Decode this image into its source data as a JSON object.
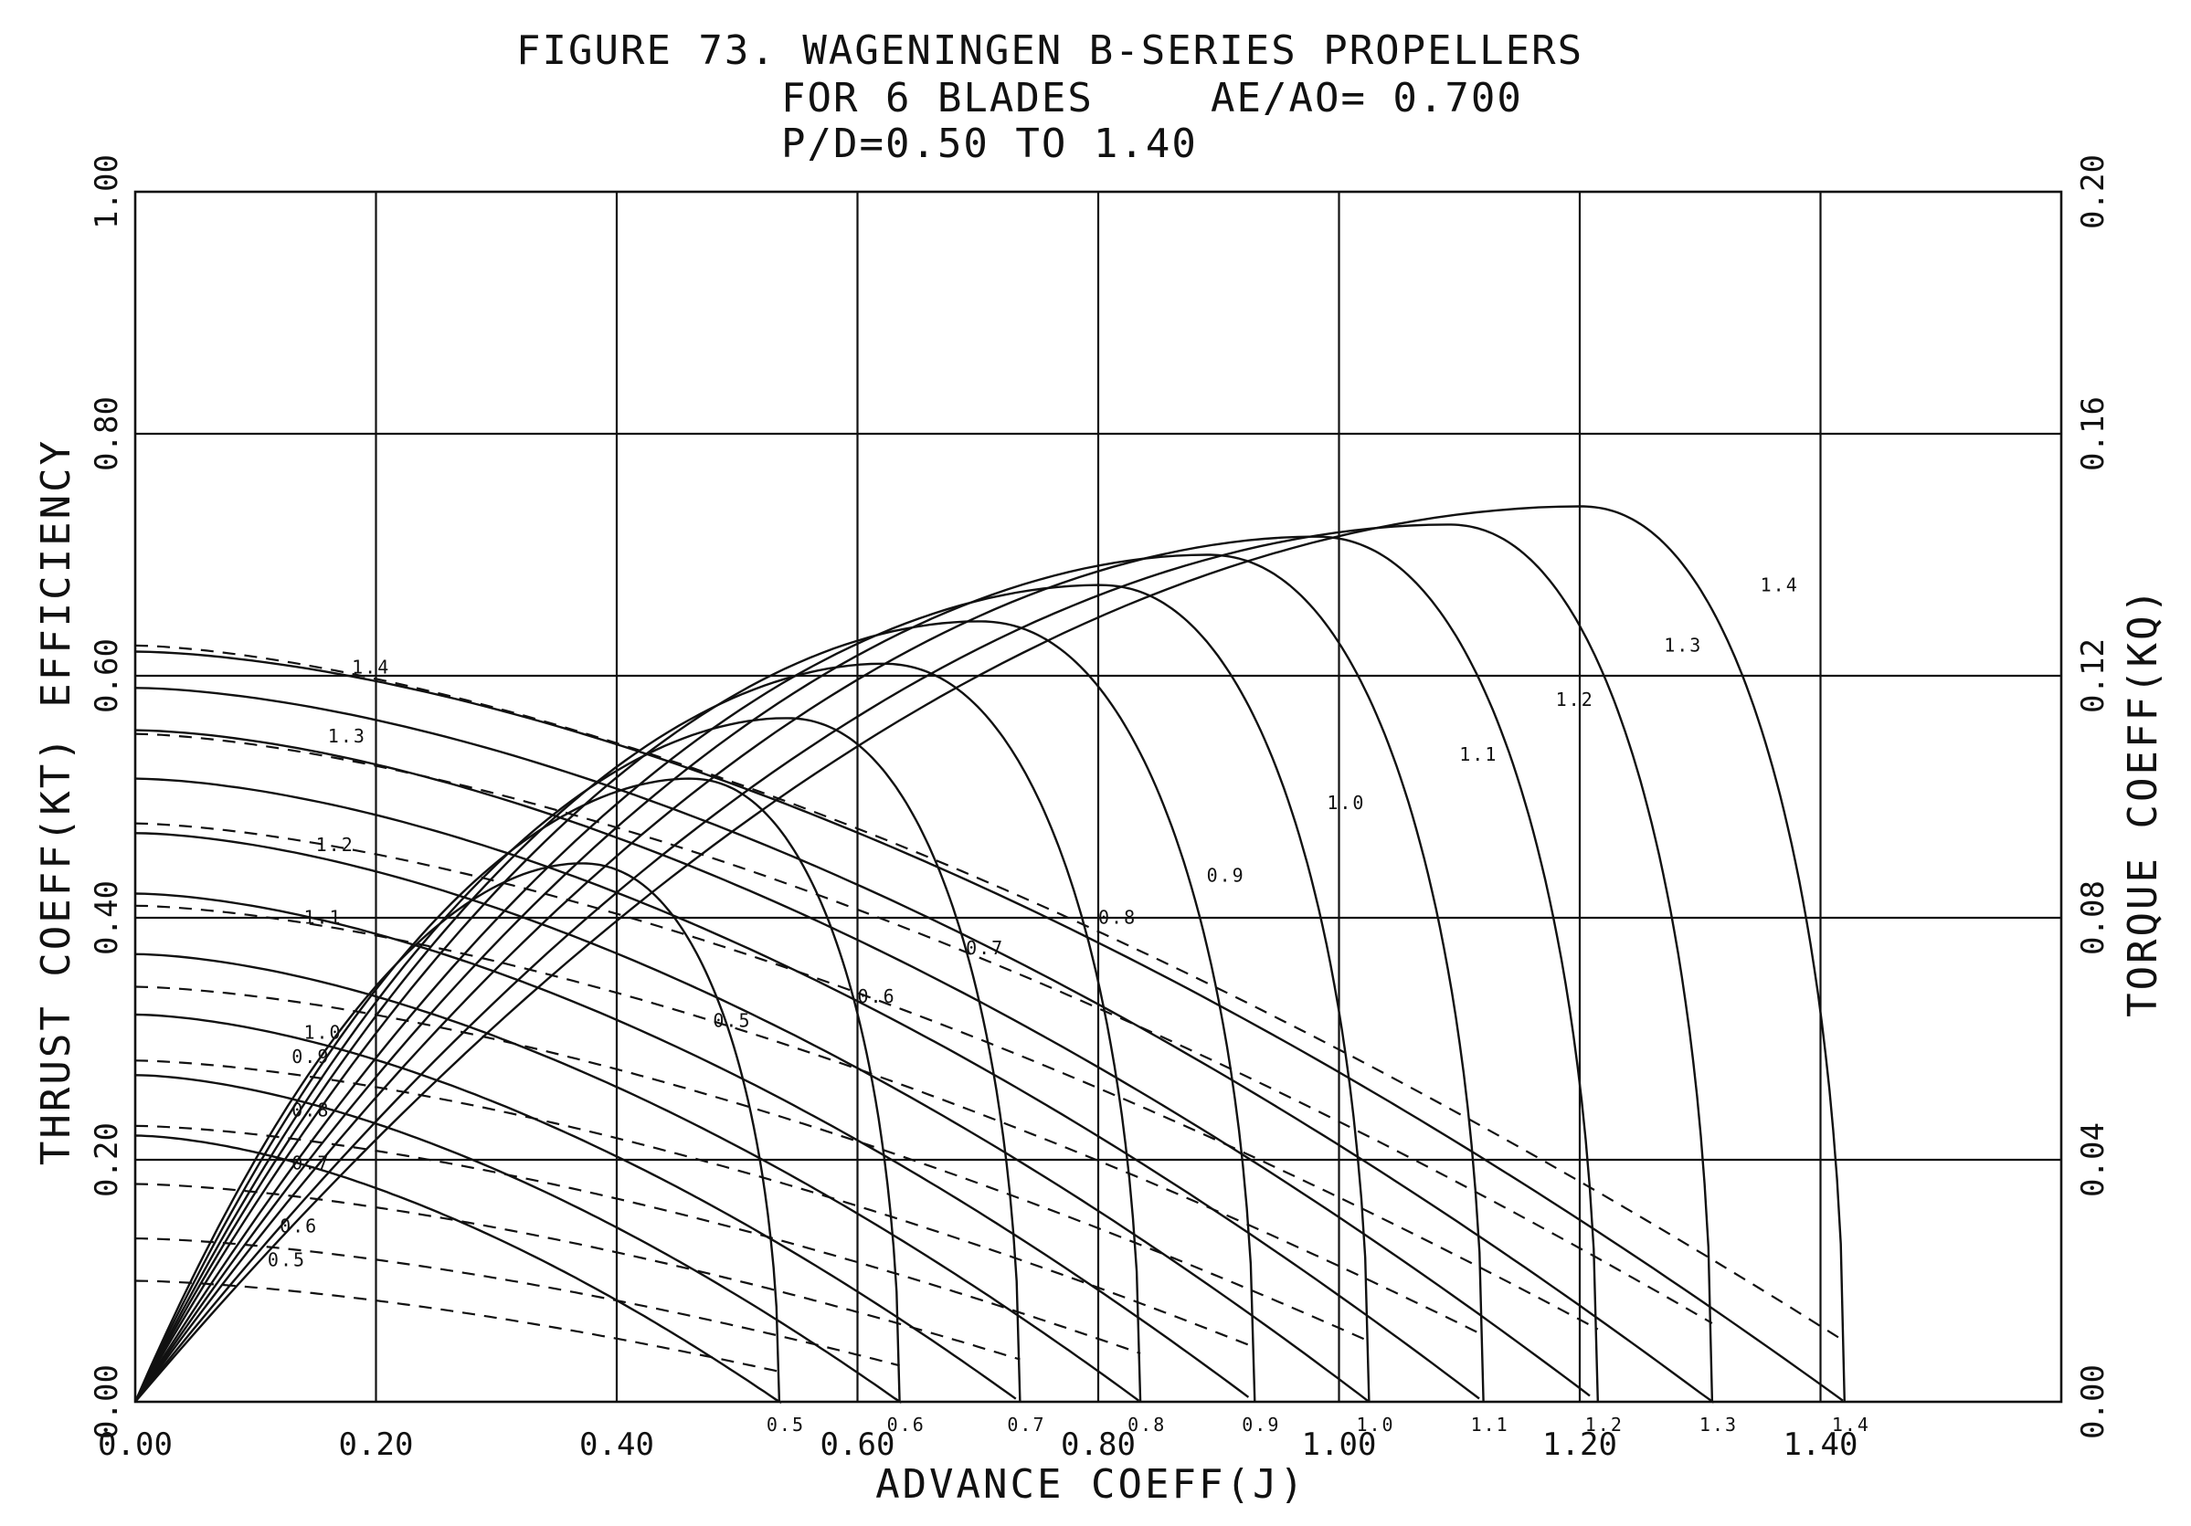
{
  "chart_data": {
    "type": "line",
    "title": "FIGURE 73. WAGENINGEN B-SERIES PROPELLERS",
    "subtitle_line1_left": "FOR 6 BLADES",
    "subtitle_line1_right": "AE/AO= 0.700",
    "subtitle_line2": "P/D=0.50 TO 1.40",
    "xlabel": "ADVANCE COEFF(J)",
    "ylabel_left": "THRUST COEFF(KT)   EFFICIENCY",
    "ylabel_right": "TORQUE COEFF(KQ)",
    "xlim": [
      0,
      1.6
    ],
    "ylim_left": [
      0,
      1.0
    ],
    "ylim_right": [
      0,
      0.2
    ],
    "grid": true,
    "x_ticks": [
      "0.00",
      "0.20",
      "0.40",
      "0.60",
      "0.80",
      "1.00",
      "1.20",
      "1.40"
    ],
    "x_tick_values": [
      0,
      0.2,
      0.4,
      0.6,
      0.8,
      1.0,
      1.2,
      1.4
    ],
    "y_left_ticks": [
      "0.00",
      "0.20",
      "0.40",
      "0.60",
      "0.80",
      "1.00"
    ],
    "y_left_tick_values": [
      0,
      0.2,
      0.4,
      0.6,
      0.8,
      1.0
    ],
    "y_right_ticks": [
      "0.00",
      "0.04",
      "0.08",
      "0.12",
      "0.16",
      "0.20"
    ],
    "y_right_tick_values": [
      0,
      0.04,
      0.08,
      0.12,
      0.16,
      0.2
    ],
    "pitch_ratios": [
      "0.5",
      "0.6",
      "0.7",
      "0.8",
      "0.9",
      "1.0",
      "1.1",
      "1.2",
      "1.3",
      "1.4"
    ],
    "kt_series": [
      {
        "label": "0.5",
        "kt0": 0.22,
        "j0": 0.535
      },
      {
        "label": "0.6",
        "kt0": 0.27,
        "j0": 0.635
      },
      {
        "label": "0.7",
        "kt0": 0.32,
        "j0": 0.735
      },
      {
        "label": "0.8",
        "kt0": 0.37,
        "j0": 0.835
      },
      {
        "label": "0.9",
        "kt0": 0.42,
        "j0": 0.93
      },
      {
        "label": "1.0",
        "kt0": 0.47,
        "j0": 1.025
      },
      {
        "label": "1.1",
        "kt0": 0.515,
        "j0": 1.12
      },
      {
        "label": "1.2",
        "kt0": 0.555,
        "j0": 1.215
      },
      {
        "label": "1.3",
        "kt0": 0.59,
        "j0": 1.31
      },
      {
        "label": "1.4",
        "kt0": 0.62,
        "j0": 1.42
      }
    ],
    "kq10_series": [
      {
        "label": "0.5",
        "kq10_0": 0.1,
        "kq10_end": 0.025,
        "j_end": 0.535
      },
      {
        "label": "0.6",
        "kq10_0": 0.135,
        "kq10_end": 0.03,
        "j_end": 0.635
      },
      {
        "label": "0.7",
        "kq10_0": 0.18,
        "kq10_end": 0.035,
        "j_end": 0.735
      },
      {
        "label": "0.8",
        "kq10_0": 0.228,
        "kq10_end": 0.04,
        "j_end": 0.835
      },
      {
        "label": "0.9",
        "kq10_0": 0.282,
        "kq10_end": 0.045,
        "j_end": 0.93
      },
      {
        "label": "1.0",
        "kq10_0": 0.343,
        "kq10_end": 0.05,
        "j_end": 1.025
      },
      {
        "label": "1.1",
        "kq10_0": 0.41,
        "kq10_end": 0.055,
        "j_end": 1.12
      },
      {
        "label": "1.2",
        "kq10_0": 0.478,
        "kq10_end": 0.06,
        "j_end": 1.215
      },
      {
        "label": "1.3",
        "kq10_0": 0.552,
        "kq10_end": 0.065,
        "j_end": 1.31
      },
      {
        "label": "1.4",
        "kq10_0": 0.625,
        "kq10_end": 0.05,
        "j_end": 1.42
      }
    ],
    "efficiency_series": [
      {
        "label": "0.5",
        "j_end": 0.535,
        "peak_j": 0.37,
        "peak_eta": 0.445
      },
      {
        "label": "0.6",
        "j_end": 0.635,
        "peak_j": 0.46,
        "peak_eta": 0.515
      },
      {
        "label": "0.7",
        "j_end": 0.735,
        "peak_j": 0.54,
        "peak_eta": 0.565
      },
      {
        "label": "0.8",
        "j_end": 0.835,
        "peak_j": 0.62,
        "peak_eta": 0.61
      },
      {
        "label": "0.9",
        "j_end": 0.93,
        "peak_j": 0.7,
        "peak_eta": 0.645
      },
      {
        "label": "1.0",
        "j_end": 1.025,
        "peak_j": 0.8,
        "peak_eta": 0.675
      },
      {
        "label": "1.1",
        "j_end": 1.12,
        "peak_j": 0.89,
        "peak_eta": 0.7
      },
      {
        "label": "1.2",
        "j_end": 1.215,
        "peak_j": 0.98,
        "peak_eta": 0.715
      },
      {
        "label": "1.3",
        "j_end": 1.31,
        "peak_j": 1.09,
        "peak_eta": 0.725
      },
      {
        "label": "1.4",
        "j_end": 1.42,
        "peak_j": 1.2,
        "peak_eta": 0.74
      }
    ]
  }
}
